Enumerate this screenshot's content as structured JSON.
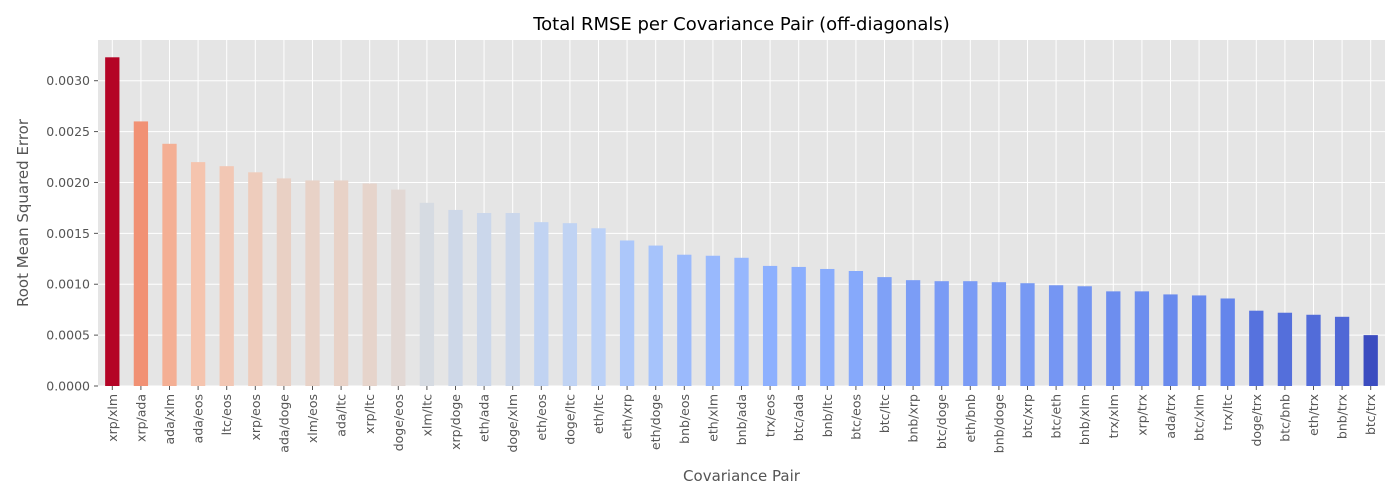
{
  "chart_data": {
    "type": "bar",
    "title": "Total RMSE per Covariance Pair (off-diagonals)",
    "xlabel": "Covariance Pair",
    "ylabel": "Root Mean Squared Error",
    "ylim": [
      0,
      0.0034
    ],
    "yticks": [
      "0.0000",
      "0.0005",
      "0.0010",
      "0.0015",
      "0.0020",
      "0.0025",
      "0.0030"
    ],
    "grid": true,
    "colors": {
      "background": "#e5e5e5",
      "grid": "#ffffff",
      "text": "#555555",
      "colormap": "coolwarm"
    },
    "categories": [
      "xrp/xlm",
      "xrp/ada",
      "ada/xlm",
      "ada/eos",
      "ltc/eos",
      "xrp/eos",
      "ada/doge",
      "xlm/eos",
      "ada/ltc",
      "xrp/ltc",
      "doge/eos",
      "xlm/ltc",
      "xrp/doge",
      "eth/ada",
      "doge/xlm",
      "eth/eos",
      "doge/ltc",
      "eth/ltc",
      "eth/xrp",
      "eth/doge",
      "bnb/eos",
      "eth/xlm",
      "bnb/ada",
      "trx/eos",
      "btc/ada",
      "bnb/ltc",
      "btc/eos",
      "btc/ltc",
      "bnb/xrp",
      "btc/doge",
      "eth/bnb",
      "bnb/doge",
      "btc/xrp",
      "btc/eth",
      "bnb/xlm",
      "trx/xlm",
      "xrp/trx",
      "ada/trx",
      "btc/xlm",
      "trx/ltc",
      "doge/trx",
      "btc/bnb",
      "eth/trx",
      "bnb/trx",
      "btc/trx"
    ],
    "values": [
      0.00323,
      0.0026,
      0.00238,
      0.0022,
      0.00216,
      0.0021,
      0.00204,
      0.00202,
      0.00202,
      0.00199,
      0.00193,
      0.0018,
      0.00173,
      0.0017,
      0.0017,
      0.00161,
      0.0016,
      0.00155,
      0.00143,
      0.00138,
      0.00129,
      0.00128,
      0.00126,
      0.00118,
      0.00117,
      0.00115,
      0.00113,
      0.00107,
      0.00104,
      0.00103,
      0.00103,
      0.00102,
      0.00101,
      0.00099,
      0.00098,
      0.00093,
      0.00093,
      0.0009,
      0.00089,
      0.00086,
      0.00074,
      0.00072,
      0.0007,
      0.00068,
      0.0005
    ]
  }
}
